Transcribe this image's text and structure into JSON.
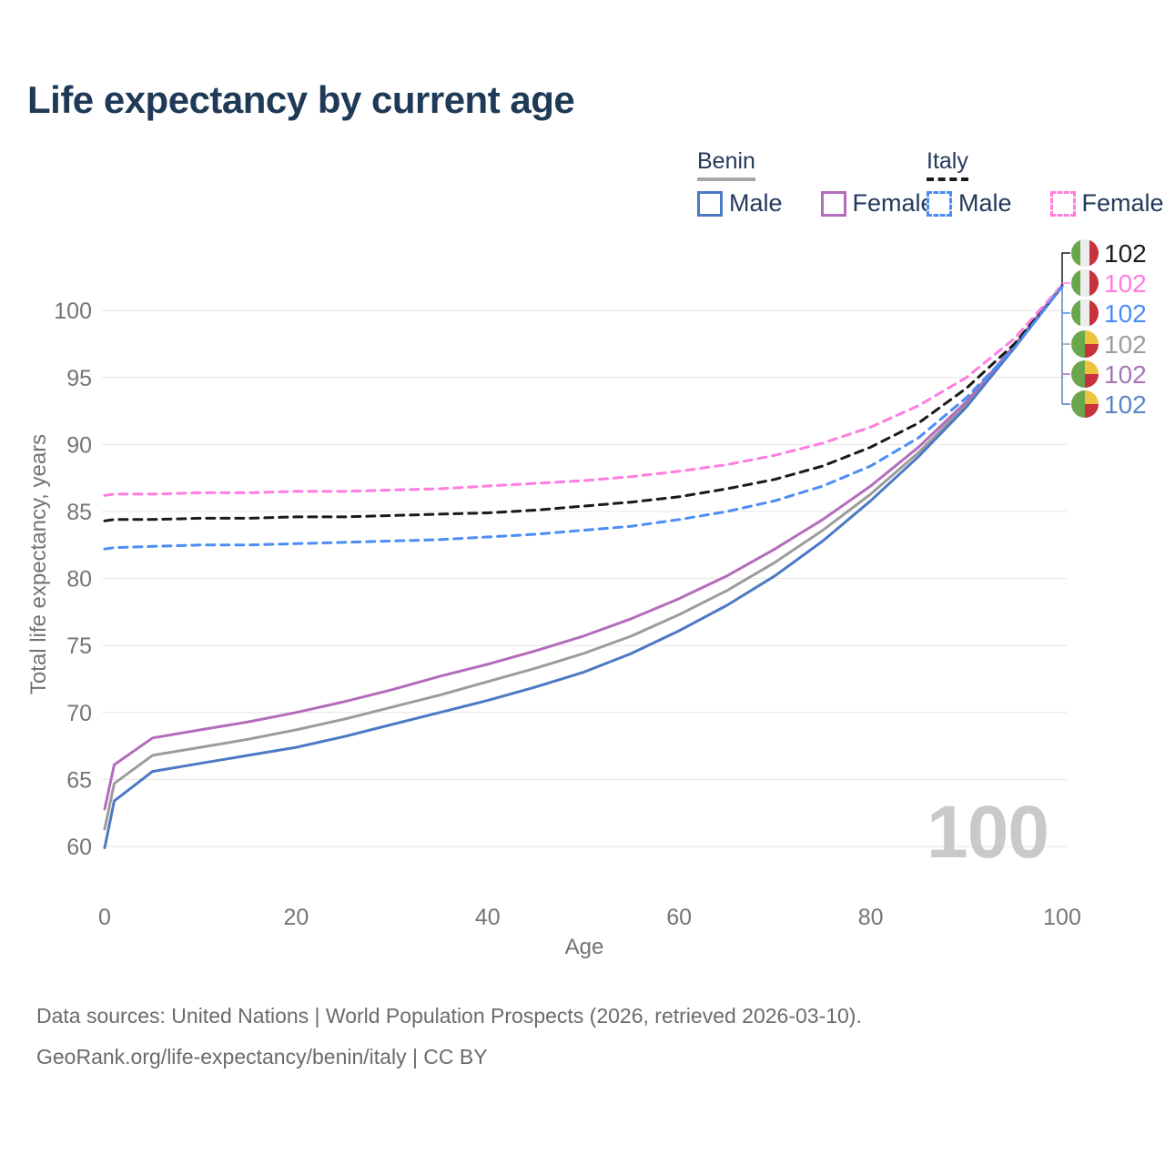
{
  "title": "Life expectancy by current age",
  "legend": {
    "groups": [
      {
        "label": "Benin",
        "line_style": "solid",
        "underline_color": "#a6a6a6",
        "items": [
          {
            "label": "Male",
            "color": "#4c79c4"
          },
          {
            "label": "Female",
            "color": "#b36cbb"
          }
        ]
      },
      {
        "label": "Italy",
        "line_style": "dashed",
        "underline_color": "#1a1a1a",
        "items": [
          {
            "label": "Male",
            "color": "#4b8df5"
          },
          {
            "label": "Female",
            "color": "#ff7ce0"
          }
        ]
      }
    ]
  },
  "watermark": "100",
  "footer": {
    "line1": "Data sources: United Nations | World Population Prospects (2026, retrieved 2026-03-10).",
    "line2": "GeoRank.org/life-expectancy/benin/italy | CC BY"
  },
  "flags": {
    "italy": {
      "left": "#6aa64c",
      "middle": "#ececec",
      "right": "#c8313e"
    },
    "benin": {
      "left": "#6aa64c",
      "top_right": "#f0c33c",
      "bottom_right": "#c8313e"
    }
  },
  "chart_data": {
    "type": "line",
    "title": "Life expectancy by current age",
    "xlabel": "Age",
    "ylabel": "Total life expectancy, years",
    "xlim": [
      0,
      100
    ],
    "ylim": [
      58.5,
      103
    ],
    "x_ticks": [
      0,
      20,
      40,
      60,
      80,
      100
    ],
    "y_ticks": [
      60,
      65,
      70,
      75,
      80,
      85,
      90,
      95,
      100
    ],
    "grid": "horizontal-only",
    "legend_position": "top-right",
    "ages": [
      0,
      1,
      5,
      10,
      15,
      20,
      25,
      30,
      35,
      40,
      45,
      50,
      55,
      60,
      65,
      70,
      75,
      80,
      85,
      90,
      95,
      100
    ],
    "series": [
      {
        "name": "Italy Both sexes",
        "country": "Italy",
        "sex": "Both",
        "color": "#1a1a1a",
        "dash": true,
        "flag": "italy",
        "end_value": "102",
        "end_label_color": "#1a1a1a",
        "values": [
          84.3,
          84.4,
          84.4,
          84.5,
          84.5,
          84.6,
          84.6,
          84.7,
          84.8,
          84.9,
          85.1,
          85.4,
          85.7,
          86.1,
          86.7,
          87.4,
          88.4,
          89.8,
          91.6,
          94.2,
          97.5,
          101.8
        ]
      },
      {
        "name": "Italy Female",
        "country": "Italy",
        "sex": "Female",
        "color": "#ff7ce0",
        "dash": true,
        "flag": "italy",
        "end_value": "102",
        "end_label_color": "#ff7ce0",
        "values": [
          86.2,
          86.3,
          86.3,
          86.4,
          86.4,
          86.5,
          86.5,
          86.6,
          86.7,
          86.9,
          87.1,
          87.3,
          87.6,
          88.0,
          88.5,
          89.2,
          90.1,
          91.3,
          92.9,
          95.0,
          97.9,
          101.9
        ]
      },
      {
        "name": "Italy Male",
        "country": "Italy",
        "sex": "Male",
        "color": "#4b8df5",
        "dash": true,
        "flag": "italy",
        "end_value": "102",
        "end_label_color": "#4b8df5",
        "values": [
          82.2,
          82.3,
          82.4,
          82.5,
          82.5,
          82.6,
          82.7,
          82.8,
          82.9,
          83.1,
          83.3,
          83.6,
          83.9,
          84.4,
          85.0,
          85.8,
          86.9,
          88.4,
          90.5,
          93.5,
          97.2,
          101.8
        ]
      },
      {
        "name": "Benin Both sexes",
        "country": "Benin",
        "sex": "Both",
        "color": "#9c9c9c",
        "dash": false,
        "flag": "benin",
        "end_value": "102",
        "end_label_color": "#9c9c9c",
        "values": [
          61.3,
          64.7,
          66.8,
          67.4,
          68.0,
          68.7,
          69.5,
          70.4,
          71.3,
          72.3,
          73.3,
          74.4,
          75.7,
          77.3,
          79.1,
          81.2,
          83.6,
          86.3,
          89.4,
          93.0,
          97.3,
          101.8
        ]
      },
      {
        "name": "Benin Female",
        "country": "Benin",
        "sex": "Female",
        "color": "#b36cbb",
        "dash": false,
        "flag": "benin",
        "end_value": "102",
        "end_label_color": "#a777b5",
        "values": [
          62.8,
          66.1,
          68.1,
          68.7,
          69.3,
          70.0,
          70.8,
          71.7,
          72.7,
          73.6,
          74.6,
          75.7,
          77.0,
          78.5,
          80.2,
          82.2,
          84.4,
          86.9,
          89.8,
          93.2,
          97.4,
          101.9
        ]
      },
      {
        "name": "Benin Male",
        "country": "Benin",
        "sex": "Male",
        "color": "#4c79c4",
        "dash": false,
        "flag": "benin",
        "end_value": "102",
        "end_label_color": "#5b84c4",
        "values": [
          59.9,
          63.4,
          65.6,
          66.2,
          66.8,
          67.4,
          68.2,
          69.1,
          70.0,
          70.9,
          71.9,
          73.0,
          74.4,
          76.1,
          78.0,
          80.2,
          82.8,
          85.8,
          89.1,
          92.8,
          97.2,
          101.8
        ]
      }
    ]
  }
}
